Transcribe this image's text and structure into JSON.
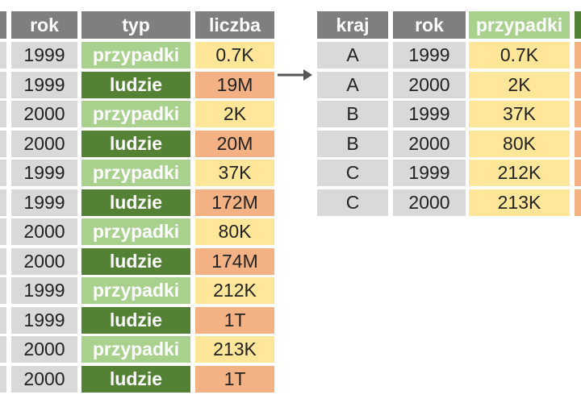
{
  "left_table": {
    "headers": [
      "rok",
      "typ",
      "liczba"
    ],
    "rows": [
      [
        "1999",
        "przypadki",
        "0.7K"
      ],
      [
        "1999",
        "ludzie",
        "19M"
      ],
      [
        "2000",
        "przypadki",
        "2K"
      ],
      [
        "2000",
        "ludzie",
        "20M"
      ],
      [
        "1999",
        "przypadki",
        "37K"
      ],
      [
        "1999",
        "ludzie",
        "172M"
      ],
      [
        "2000",
        "przypadki",
        "80K"
      ],
      [
        "2000",
        "ludzie",
        "174M"
      ],
      [
        "1999",
        "przypadki",
        "212K"
      ],
      [
        "1999",
        "ludzie",
        "1T"
      ],
      [
        "2000",
        "przypadki",
        "213K"
      ],
      [
        "2000",
        "ludzie",
        "1T"
      ]
    ]
  },
  "right_table": {
    "headers": [
      "kraj",
      "rok",
      "przypadki"
    ],
    "rows": [
      [
        "A",
        "1999",
        "0.7K"
      ],
      [
        "A",
        "2000",
        "2K"
      ],
      [
        "B",
        "1999",
        "37K"
      ],
      [
        "B",
        "2000",
        "80K"
      ],
      [
        "C",
        "1999",
        "212K"
      ],
      [
        "C",
        "2000",
        "213K"
      ]
    ]
  }
}
